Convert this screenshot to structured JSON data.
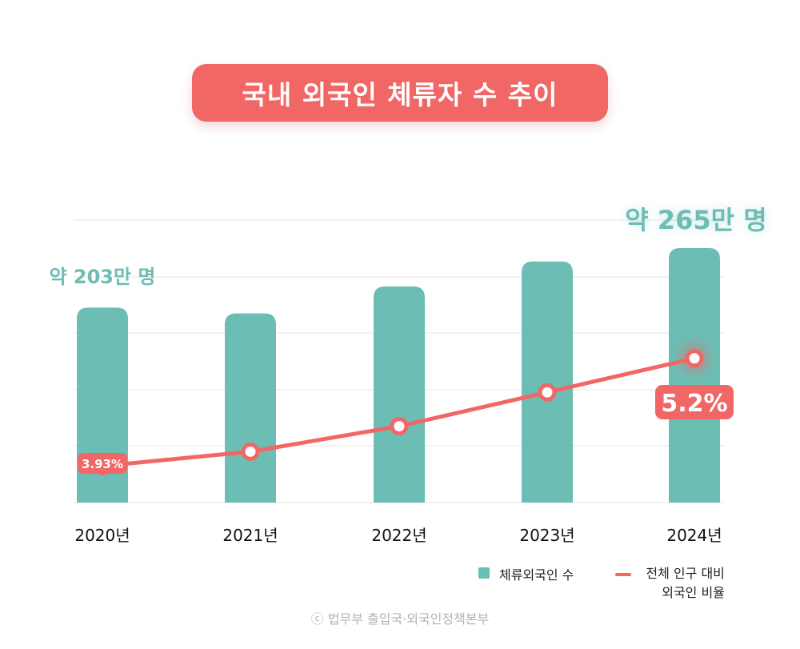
{
  "title": "국내 외국인 체류자 수 추이",
  "colors": {
    "bar": "#6cbdb4",
    "line": "#f06766",
    "accent_text": "#6cbdb4",
    "gridline": "#e6e6e6"
  },
  "chart_data": {
    "type": "bar",
    "categories": [
      "2020년",
      "2021년",
      "2022년",
      "2023년",
      "2024년"
    ],
    "series": [
      {
        "name": "체류외국인 수",
        "type": "bar",
        "values": [
          203,
          197,
          225,
          251,
          265
        ],
        "unit": "만 명"
      },
      {
        "name": "전체 인구 대비 외국인 비율",
        "type": "line",
        "values": [
          3.93,
          4.1,
          4.4,
          4.8,
          5.2
        ],
        "unit": "%"
      }
    ],
    "annotations": {
      "first_bar": "약 203만 명",
      "last_bar": "약 265만 명",
      "first_point": "3.93%",
      "last_point": "5.2%"
    },
    "gridlines": true,
    "legend_position": "bottom-right"
  },
  "legend": {
    "bar_label": "체류외국인 수",
    "line_label_line1": "전체 인구 대비",
    "line_label_line2": "외국인 비율"
  },
  "source": "ⓒ 법무부 출입국·외국인정책본부"
}
